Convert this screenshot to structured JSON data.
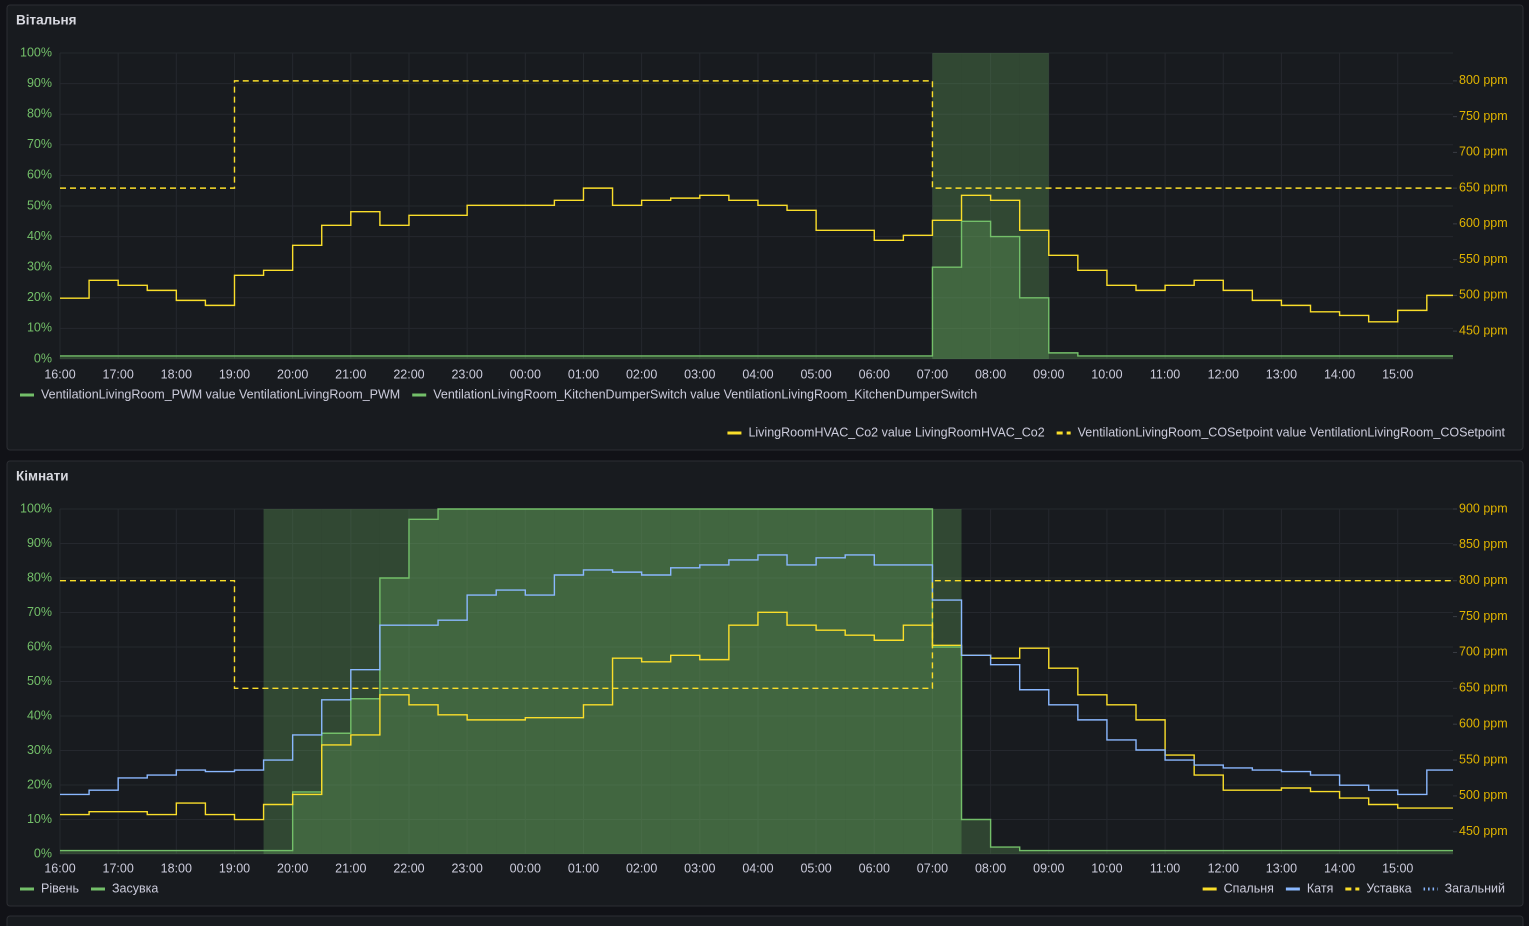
{
  "chart_data": [
    {
      "type": "line",
      "title": "Вітальня",
      "x": [
        "16:00",
        "16:30",
        "17:00",
        "17:30",
        "18:00",
        "18:30",
        "19:00",
        "19:30",
        "20:00",
        "20:30",
        "21:00",
        "21:30",
        "22:00",
        "22:30",
        "23:00",
        "23:30",
        "00:00",
        "00:30",
        "01:00",
        "01:30",
        "02:00",
        "02:30",
        "03:00",
        "03:30",
        "04:00",
        "04:30",
        "05:00",
        "05:30",
        "06:00",
        "06:30",
        "07:00",
        "07:30",
        "08:00",
        "08:30",
        "09:00",
        "09:30",
        "10:00",
        "10:30",
        "11:00",
        "11:30",
        "12:00",
        "12:30",
        "13:00",
        "13:30",
        "14:00",
        "14:30",
        "15:00",
        "15:30"
      ],
      "xlim": [
        "16:00",
        "15:57"
      ],
      "xticks": [
        "16:00",
        "17:00",
        "18:00",
        "19:00",
        "20:00",
        "21:00",
        "22:00",
        "23:00",
        "00:00",
        "01:00",
        "02:00",
        "03:00",
        "04:00",
        "05:00",
        "06:00",
        "07:00",
        "08:00",
        "09:00",
        "10:00",
        "11:00",
        "12:00",
        "13:00",
        "14:00",
        "15:00"
      ],
      "ylim": [
        0,
        100
      ],
      "yticks": [
        {
          "value": 0,
          "label": "0%"
        },
        {
          "value": 10,
          "label": "10%"
        },
        {
          "value": 20,
          "label": "20%"
        },
        {
          "value": 30,
          "label": "30%"
        },
        {
          "value": 40,
          "label": "40%"
        },
        {
          "value": 50,
          "label": "50%"
        },
        {
          "value": 60,
          "label": "60%"
        },
        {
          "value": 70,
          "label": "70%"
        },
        {
          "value": 80,
          "label": "80%"
        },
        {
          "value": 90,
          "label": "90%"
        },
        {
          "value": 100,
          "label": "100%"
        }
      ],
      "y2lim": [
        411,
        839
      ],
      "y2ticks": [
        {
          "value": 450,
          "label": "450 ppm"
        },
        {
          "value": 500,
          "label": "500 ppm"
        },
        {
          "value": 550,
          "label": "550 ppm"
        },
        {
          "value": 600,
          "label": "600 ppm"
        },
        {
          "value": 650,
          "label": "650 ppm"
        },
        {
          "value": 700,
          "label": "700 ppm"
        },
        {
          "value": 750,
          "label": "750 ppm"
        },
        {
          "value": 800,
          "label": "800 ppm"
        }
      ],
      "grid": true,
      "series": [
        {
          "name": "VentilationLivingRoom_PWM value VentilationLivingRoom_PWM",
          "color": "#73bf69",
          "style": "area",
          "values": [
            1,
            1,
            1,
            1,
            1,
            1,
            1,
            1,
            1,
            1,
            1,
            1,
            1,
            1,
            1,
            1,
            1,
            1,
            1,
            1,
            1,
            1,
            1,
            1,
            1,
            1,
            1,
            1,
            1,
            1,
            30,
            45,
            40,
            20,
            2,
            1,
            1,
            1,
            1,
            1,
            1,
            1,
            1,
            1,
            1,
            1,
            1,
            1
          ]
        },
        {
          "name": "VentilationLivingRoom_KitchenDumperSwitch value VentilationLivingRoom_KitchenDumperSwitch",
          "color": "#73bf69",
          "style": "band",
          "values": [
            0,
            0,
            0,
            0,
            0,
            0,
            0,
            0,
            0,
            0,
            0,
            0,
            0,
            0,
            0,
            0,
            0,
            0,
            0,
            0,
            0,
            0,
            0,
            0,
            0,
            0,
            0,
            0,
            0,
            0,
            100,
            100,
            100,
            100,
            0,
            0,
            0,
            0,
            0,
            0,
            0,
            0,
            0,
            0,
            0,
            0,
            0,
            0
          ]
        },
        {
          "name": "LivingRoomHVAC_Co2 value LivingRoomHVAC_Co2",
          "color": "#fade2a",
          "style": "line",
          "axis": "y2",
          "values": [
            496,
            521,
            514,
            507,
            493,
            486,
            528,
            535,
            570,
            598,
            617,
            598,
            612,
            612,
            626,
            626,
            626,
            633,
            650,
            626,
            633,
            636,
            640,
            633,
            626,
            619,
            591,
            591,
            577,
            584,
            605,
            640,
            633,
            591,
            556,
            535,
            514,
            507,
            514,
            521,
            507,
            493,
            486,
            477,
            472,
            463,
            479,
            500
          ]
        },
        {
          "name": "VentilationLivingRoom_COSetpoint value VentilationLivingRoom_COSetpoint",
          "color": "#fade2a",
          "style": "dashed",
          "axis": "y2",
          "values": [
            650,
            650,
            650,
            650,
            650,
            650,
            800,
            800,
            800,
            800,
            800,
            800,
            800,
            800,
            800,
            800,
            800,
            800,
            800,
            800,
            800,
            800,
            800,
            800,
            800,
            800,
            800,
            800,
            800,
            800,
            650,
            650,
            650,
            650,
            650,
            650,
            650,
            650,
            650,
            650,
            650,
            650,
            650,
            650,
            650,
            650,
            650,
            650
          ]
        }
      ]
    },
    {
      "type": "line",
      "title": "Кімнати",
      "x": [
        "16:00",
        "16:30",
        "17:00",
        "17:30",
        "18:00",
        "18:30",
        "19:00",
        "19:30",
        "20:00",
        "20:30",
        "21:00",
        "21:30",
        "22:00",
        "22:30",
        "23:00",
        "23:30",
        "00:00",
        "00:30",
        "01:00",
        "01:30",
        "02:00",
        "02:30",
        "03:00",
        "03:30",
        "04:00",
        "04:30",
        "05:00",
        "05:30",
        "06:00",
        "06:30",
        "07:00",
        "07:30",
        "08:00",
        "08:30",
        "09:00",
        "09:30",
        "10:00",
        "10:30",
        "11:00",
        "11:30",
        "12:00",
        "12:30",
        "13:00",
        "13:30",
        "14:00",
        "14:30",
        "15:00",
        "15:30"
      ],
      "xlim": [
        "16:00",
        "15:57"
      ],
      "xticks": [
        "16:00",
        "17:00",
        "18:00",
        "19:00",
        "20:00",
        "21:00",
        "22:00",
        "23:00",
        "00:00",
        "01:00",
        "02:00",
        "03:00",
        "04:00",
        "05:00",
        "06:00",
        "07:00",
        "08:00",
        "09:00",
        "10:00",
        "11:00",
        "12:00",
        "13:00",
        "14:00",
        "15:00"
      ],
      "ylim": [
        0,
        100
      ],
      "yticks": [
        {
          "value": 0,
          "label": "0%"
        },
        {
          "value": 10,
          "label": "10%"
        },
        {
          "value": 20,
          "label": "20%"
        },
        {
          "value": 30,
          "label": "30%"
        },
        {
          "value": 40,
          "label": "40%"
        },
        {
          "value": 50,
          "label": "50%"
        },
        {
          "value": 60,
          "label": "60%"
        },
        {
          "value": 70,
          "label": "70%"
        },
        {
          "value": 80,
          "label": "80%"
        },
        {
          "value": 90,
          "label": "90%"
        },
        {
          "value": 100,
          "label": "100%"
        }
      ],
      "y2lim": [
        419,
        900
      ],
      "y2ticks": [
        {
          "value": 450,
          "label": "450 ppm"
        },
        {
          "value": 500,
          "label": "500 ppm"
        },
        {
          "value": 550,
          "label": "550 ppm"
        },
        {
          "value": 600,
          "label": "600 ppm"
        },
        {
          "value": 650,
          "label": "650 ppm"
        },
        {
          "value": 700,
          "label": "700 ppm"
        },
        {
          "value": 750,
          "label": "750 ppm"
        },
        {
          "value": 800,
          "label": "800 ppm"
        },
        {
          "value": 850,
          "label": "850 ppm"
        },
        {
          "value": 900,
          "label": "900 ppm"
        }
      ],
      "grid": true,
      "series": [
        {
          "name": "Рівень",
          "color": "#73bf69",
          "style": "area",
          "values": [
            1,
            1,
            1,
            1,
            1,
            1,
            1,
            1,
            18,
            35,
            45,
            80,
            97,
            100,
            100,
            100,
            100,
            100,
            100,
            100,
            100,
            100,
            100,
            100,
            100,
            100,
            100,
            100,
            100,
            100,
            60,
            10,
            2,
            1,
            1,
            1,
            1,
            1,
            1,
            1,
            1,
            1,
            1,
            1,
            1,
            1,
            1,
            1
          ]
        },
        {
          "name": "Засувка",
          "color": "#73bf69",
          "style": "band",
          "values": [
            0,
            0,
            0,
            0,
            0,
            0,
            0,
            100,
            100,
            100,
            100,
            100,
            100,
            100,
            100,
            100,
            100,
            100,
            100,
            100,
            100,
            100,
            100,
            100,
            100,
            100,
            100,
            100,
            100,
            100,
            100,
            0,
            0,
            0,
            0,
            0,
            0,
            0,
            0,
            0,
            0,
            0,
            0,
            0,
            0,
            0,
            0,
            0
          ]
        },
        {
          "name": "Спальня",
          "color": "#fade2a",
          "style": "line",
          "axis": "y2",
          "values": [
            474,
            478,
            478,
            474,
            490,
            474,
            467,
            488,
            502,
            571,
            585,
            641,
            627,
            613,
            606,
            606,
            609,
            609,
            627,
            692,
            687,
            696,
            690,
            738,
            756,
            738,
            731,
            724,
            717,
            738,
            710,
            696,
            692,
            706,
            678,
            641,
            627,
            606,
            557,
            529,
            508,
            508,
            511,
            506,
            497,
            488,
            483,
            483
          ]
        },
        {
          "name": "Катя",
          "color": "#8ab8ff",
          "style": "line",
          "axis": "y2",
          "values": [
            502,
            508,
            525,
            529,
            536,
            534,
            536,
            550,
            585,
            634,
            676,
            738,
            738,
            745,
            780,
            787,
            780,
            808,
            815,
            812,
            808,
            818,
            822,
            829,
            836,
            822,
            832,
            836,
            822,
            822,
            773,
            696,
            683,
            648,
            627,
            606,
            578,
            564,
            550,
            543,
            539,
            536,
            534,
            529,
            515,
            508,
            502,
            536
          ]
        },
        {
          "name": "Уставка",
          "color": "#fade2a",
          "style": "dashed",
          "axis": "y2",
          "values": [
            800,
            800,
            800,
            800,
            800,
            800,
            650,
            650,
            650,
            650,
            650,
            650,
            650,
            650,
            650,
            650,
            650,
            650,
            650,
            650,
            650,
            650,
            650,
            650,
            650,
            650,
            650,
            650,
            650,
            650,
            800,
            800,
            800,
            800,
            800,
            800,
            800,
            800,
            800,
            800,
            800,
            800,
            800,
            800,
            800,
            800,
            800,
            800
          ]
        },
        {
          "name": "Загальний",
          "color": "#8ab8ff",
          "style": "dotted",
          "axis": "y2",
          "values": [
            null,
            null,
            null,
            null,
            null,
            null,
            null,
            null,
            null,
            null,
            null,
            null,
            null,
            null,
            null,
            null,
            null,
            null,
            null,
            null,
            null,
            null,
            null,
            null,
            null,
            null,
            null,
            null,
            null,
            null,
            null,
            null,
            null,
            null,
            null,
            null,
            null,
            null,
            null,
            null,
            null,
            null,
            null,
            null,
            null,
            null,
            null,
            null
          ]
        }
      ]
    }
  ]
}
